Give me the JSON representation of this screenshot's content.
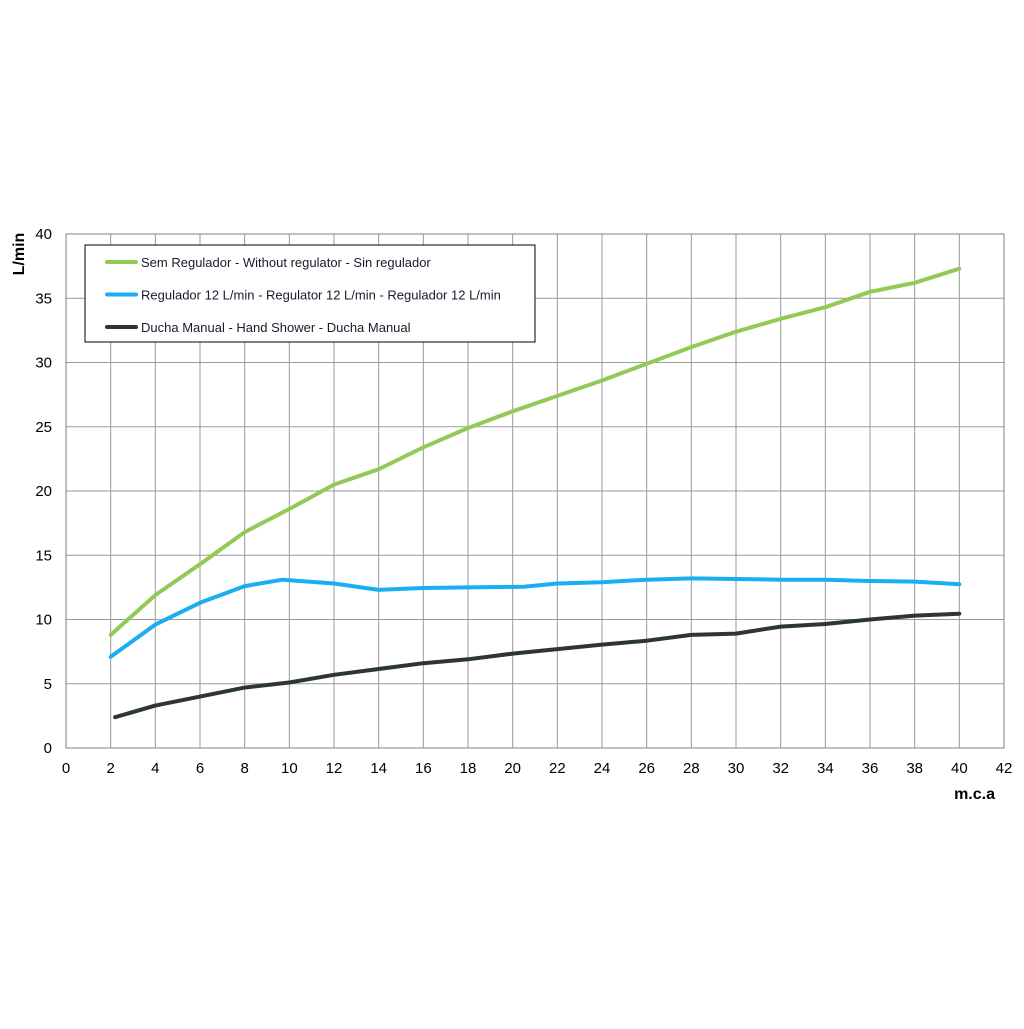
{
  "chart_data": {
    "type": "line",
    "xlabel": "m.c.a",
    "ylabel": "L/min",
    "xlim": [
      0,
      42
    ],
    "ylim": [
      0,
      40
    ],
    "xticks": [
      "0",
      "2",
      "4",
      "6",
      "8",
      "10",
      "12",
      "14",
      "16",
      "18",
      "20",
      "22",
      "24",
      "26",
      "28",
      "30",
      "32",
      "34",
      "36",
      "38",
      "40",
      "42"
    ],
    "yticks": [
      "0",
      "5",
      "10",
      "15",
      "20",
      "25",
      "30",
      "35",
      "40"
    ],
    "grid": true,
    "legend_position": "top-left",
    "series": [
      {
        "name": "Sem Regulador - Without regulator - Sin regulador",
        "color": "#94c957",
        "points": [
          [
            2,
            8.8
          ],
          [
            4,
            11.9
          ],
          [
            6,
            14.3
          ],
          [
            8,
            16.8
          ],
          [
            10,
            18.6
          ],
          [
            12,
            20.5
          ],
          [
            14,
            21.7
          ],
          [
            16,
            23.4
          ],
          [
            18,
            24.9
          ],
          [
            20,
            26.2
          ],
          [
            22,
            27.4
          ],
          [
            24,
            28.6
          ],
          [
            26,
            29.9
          ],
          [
            28,
            31.2
          ],
          [
            30,
            32.4
          ],
          [
            32,
            33.4
          ],
          [
            34,
            34.3
          ],
          [
            36,
            35.5
          ],
          [
            38,
            36.2
          ],
          [
            40,
            37.3
          ]
        ]
      },
      {
        "name": "Regulador 12 L/min - Regulator 12 L/min - Regulador 12 L/min",
        "color": "#1aaef0",
        "points": [
          [
            2,
            7.1
          ],
          [
            4,
            9.6
          ],
          [
            6,
            11.3
          ],
          [
            8,
            12.6
          ],
          [
            9.7,
            13.1
          ],
          [
            12,
            12.8
          ],
          [
            14,
            12.3
          ],
          [
            16,
            12.45
          ],
          [
            18,
            12.5
          ],
          [
            20.5,
            12.55
          ],
          [
            22,
            12.8
          ],
          [
            24,
            12.9
          ],
          [
            26,
            13.1
          ],
          [
            28,
            13.2
          ],
          [
            30,
            13.15
          ],
          [
            32,
            13.1
          ],
          [
            34,
            13.1
          ],
          [
            36,
            13.0
          ],
          [
            38,
            12.95
          ],
          [
            40,
            12.75
          ]
        ]
      },
      {
        "name": "Ducha Manual - Hand Shower - Ducha Manual",
        "color": "#2b353a",
        "points": [
          [
            2.2,
            2.4
          ],
          [
            4,
            3.3
          ],
          [
            6,
            4.0
          ],
          [
            8,
            4.7
          ],
          [
            10,
            5.1
          ],
          [
            12,
            5.7
          ],
          [
            14,
            6.15
          ],
          [
            16,
            6.6
          ],
          [
            18,
            6.9
          ],
          [
            20,
            7.35
          ],
          [
            22,
            7.7
          ],
          [
            24,
            8.05
          ],
          [
            26,
            8.35
          ],
          [
            28,
            8.8
          ],
          [
            30,
            8.9
          ],
          [
            32,
            9.45
          ],
          [
            34,
            9.65
          ],
          [
            36,
            10.0
          ],
          [
            38,
            10.3
          ],
          [
            40,
            10.45
          ]
        ]
      }
    ]
  }
}
